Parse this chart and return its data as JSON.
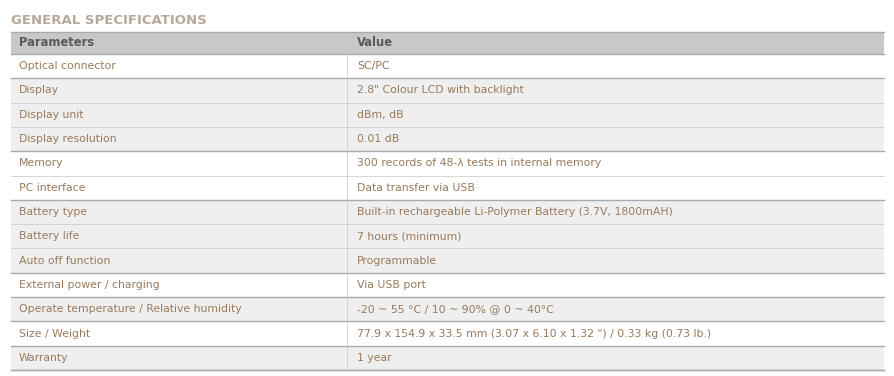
{
  "title": "GENERAL SPECIFICATIONS",
  "title_color": "#b8a898",
  "title_fontsize": 9.5,
  "header": [
    "Parameters",
    "Value"
  ],
  "header_bg": "#c8c8c8",
  "header_color": "#5a5a5a",
  "rows": [
    [
      "Optical connector",
      "SC/PC",
      "#ffffff"
    ],
    [
      "Display",
      "2.8\" Colour LCD with backlight",
      "#efefef"
    ],
    [
      "Display unit",
      "dBm, dB",
      "#efefef"
    ],
    [
      "Display resolution",
      "0.01 dB",
      "#efefef"
    ],
    [
      "Memory",
      "300 records of 48-λ tests in internal memory",
      "#ffffff"
    ],
    [
      "PC interface",
      "Data transfer via USB",
      "#ffffff"
    ],
    [
      "Battery type",
      "Built-in rechargeable Li-Polymer Battery (3.7V, 1800mAH)",
      "#efefef"
    ],
    [
      "Battery life",
      "7 hours (minimum)",
      "#efefef"
    ],
    [
      "Auto off function",
      "Programmable",
      "#efefef"
    ],
    [
      "External power / charging",
      "Via USB port",
      "#ffffff"
    ],
    [
      "Operate temperature / Relative humidity",
      "-20 ~ 55 °C / 10 ~ 90% @ 0 ~ 40°C",
      "#efefef"
    ],
    [
      "Size / Weight",
      "77.9 x 154.9 x 33.5 mm (3.07 x 6.10 x 1.32 \") / 0.33 kg (0.73 lb.)",
      "#ffffff"
    ],
    [
      "Warranty",
      "1 year",
      "#efefef"
    ]
  ],
  "group_separator_after": [
    0,
    3,
    5,
    8,
    9,
    10,
    11,
    12
  ],
  "col_split": 0.385,
  "text_color": "#9a7a5a",
  "normal_color": "#5a5a5a",
  "bg_color": "#ffffff",
  "stripe_color": "#efefef",
  "border_color": "#c8c8c8",
  "group_border_color": "#aaaaaa",
  "font_size": 7.8
}
